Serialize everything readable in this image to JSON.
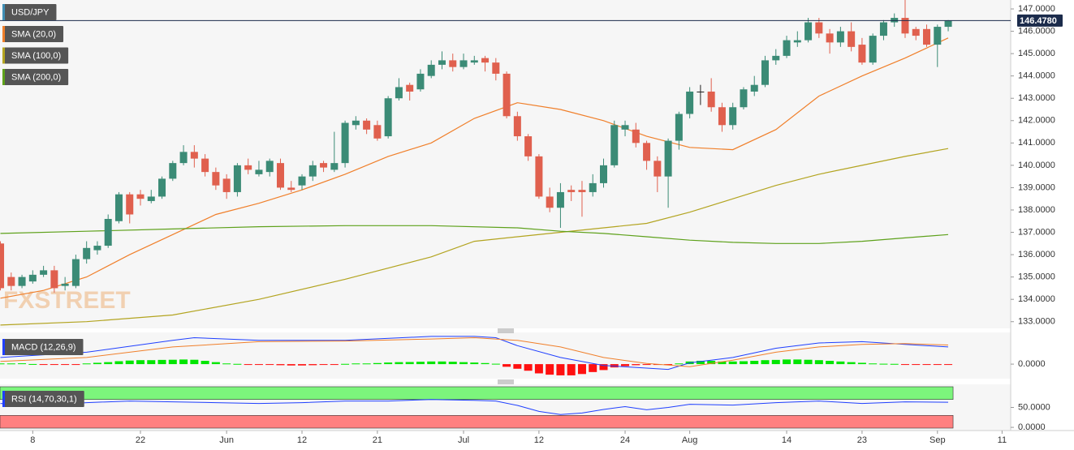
{
  "chart_data": [
    {
      "type": "candlestick",
      "series": [
        {
          "name": "USD/JPY",
          "color": "#3f8fb5",
          "up_color": "#3b8b76",
          "down_color": "#e0604e",
          "open": [
            136.5,
            135.0,
            134.6,
            134.8,
            135.1,
            135.3,
            134.6,
            134.6,
            135.8,
            136.2,
            136.4,
            137.5,
            138.7,
            138.7,
            138.4,
            138.6,
            139.4,
            140.1,
            140.6,
            140.3,
            139.7,
            139.4,
            138.8,
            140.0,
            139.6,
            139.7,
            140.1,
            139.0,
            139.1,
            139.5,
            140.1,
            139.8,
            140.1,
            141.8,
            142.0,
            141.8,
            141.3,
            143.0,
            143.6,
            143.4,
            144.0,
            144.5,
            144.7,
            144.4,
            144.6,
            144.8,
            144.6,
            144.1,
            142.2,
            141.3,
            140.4,
            138.6,
            138.1,
            138.9,
            138.9,
            138.8,
            139.2,
            140.0,
            141.6,
            141.6,
            141.0,
            140.2,
            139.5,
            141.1,
            142.3,
            143.3,
            143.3,
            142.6,
            141.8,
            142.6,
            143.3,
            143.6,
            144.7,
            144.9,
            145.5,
            145.6,
            146.4,
            145.9,
            145.5,
            146.0,
            145.4,
            144.6,
            145.8,
            146.4,
            146.6,
            146.1,
            146.1,
            145.4,
            146.2
          ],
          "high": [
            136.6,
            135.2,
            135.1,
            135.3,
            135.5,
            135.5,
            135.0,
            136.0,
            136.6,
            136.6,
            137.8,
            138.8,
            138.8,
            138.9,
            138.9,
            139.5,
            140.2,
            140.9,
            140.9,
            140.5,
            139.9,
            139.6,
            140.1,
            140.3,
            140.2,
            140.3,
            140.3,
            139.3,
            139.6,
            140.2,
            140.2,
            141.5,
            142.0,
            142.2,
            142.1,
            142.0,
            143.1,
            143.9,
            143.7,
            144.3,
            144.7,
            145.1,
            145.0,
            145.0,
            144.9,
            144.9,
            144.8,
            144.2,
            142.4,
            141.4,
            140.5,
            139.0,
            139.2,
            139.1,
            139.3,
            139.6,
            140.3,
            142.0,
            142.0,
            141.9,
            141.1,
            140.4,
            141.2,
            142.4,
            143.5,
            143.6,
            143.9,
            142.8,
            142.8,
            143.5,
            144.0,
            144.9,
            145.2,
            145.8,
            146.0,
            146.6,
            146.6,
            146.1,
            146.2,
            146.4,
            145.7,
            145.9,
            146.5,
            146.8,
            147.4,
            146.2,
            146.3,
            146.3,
            146.5
          ],
          "low": [
            134.4,
            134.4,
            134.5,
            134.7,
            135.0,
            134.3,
            134.4,
            134.5,
            135.6,
            136.0,
            136.3,
            137.4,
            137.4,
            138.2,
            138.3,
            138.5,
            139.3,
            140.0,
            139.9,
            139.5,
            138.9,
            138.5,
            138.6,
            139.6,
            139.5,
            139.5,
            138.9,
            138.8,
            138.9,
            139.3,
            139.7,
            139.7,
            139.9,
            141.6,
            141.4,
            141.1,
            141.2,
            142.9,
            142.9,
            143.3,
            143.9,
            144.3,
            144.2,
            144.3,
            144.5,
            144.2,
            143.8,
            142.1,
            141.1,
            140.2,
            138.5,
            137.9,
            137.2,
            138.4,
            137.7,
            138.6,
            139.0,
            139.9,
            141.3,
            140.8,
            139.8,
            138.8,
            138.1,
            140.7,
            142.1,
            142.7,
            142.4,
            141.5,
            141.6,
            142.5,
            143.1,
            143.5,
            144.5,
            144.8,
            145.3,
            145.5,
            145.7,
            145.0,
            145.3,
            145.1,
            144.5,
            144.5,
            145.6,
            146.2,
            145.7,
            145.6,
            145.3,
            144.4,
            146.0
          ],
          "close": [
            134.5,
            134.6,
            135.0,
            135.1,
            135.3,
            134.5,
            134.7,
            135.8,
            136.3,
            136.4,
            137.6,
            138.7,
            137.8,
            138.5,
            138.6,
            139.4,
            140.1,
            140.6,
            140.3,
            139.7,
            139.1,
            138.8,
            140.0,
            139.8,
            139.8,
            140.2,
            139.0,
            138.9,
            139.5,
            140.0,
            139.9,
            140.1,
            141.9,
            142.0,
            141.6,
            141.2,
            143.0,
            143.5,
            143.3,
            144.1,
            144.5,
            144.7,
            144.4,
            144.7,
            144.7,
            144.6,
            144.1,
            142.2,
            141.3,
            140.4,
            138.6,
            138.1,
            138.8,
            138.8,
            138.8,
            139.2,
            140.0,
            141.8,
            141.8,
            141.0,
            140.2,
            139.5,
            141.1,
            142.3,
            143.3,
            143.3,
            142.6,
            141.8,
            142.6,
            143.4,
            143.6,
            144.7,
            144.9,
            145.6,
            145.6,
            146.4,
            145.9,
            145.5,
            146.0,
            145.3,
            144.6,
            145.8,
            146.4,
            146.6,
            145.9,
            145.8,
            145.4,
            146.2,
            146.478
          ]
        }
      ],
      "lines": [
        {
          "name": "SMA (20,0)",
          "color": "#f07f2a",
          "x": [
            0,
            4,
            8,
            12,
            16,
            20,
            24,
            28,
            32,
            36,
            40,
            44,
            48,
            52,
            56,
            60,
            64,
            68,
            72,
            76,
            80,
            84,
            88
          ],
          "values": [
            134.05,
            134.4,
            135.0,
            136.0,
            136.9,
            137.8,
            138.3,
            138.9,
            139.6,
            140.4,
            141.0,
            142.1,
            142.8,
            142.5,
            142.0,
            141.3,
            140.8,
            140.7,
            141.6,
            143.1,
            144.0,
            144.8,
            145.7
          ]
        },
        {
          "name": "SMA (100,0)",
          "color": "#b3a420",
          "x": [
            0,
            8,
            16,
            24,
            32,
            40,
            44,
            48,
            52,
            56,
            60,
            64,
            68,
            72,
            76,
            80,
            84,
            88
          ],
          "values": [
            132.85,
            133.0,
            133.3,
            134.0,
            134.9,
            135.9,
            136.6,
            136.8,
            137.0,
            137.2,
            137.4,
            137.9,
            138.5,
            139.1,
            139.6,
            140.0,
            140.4,
            140.75
          ]
        },
        {
          "name": "SMA (200,0)",
          "color": "#5ea11b",
          "x": [
            0,
            8,
            16,
            24,
            32,
            40,
            48,
            52,
            56,
            60,
            64,
            68,
            72,
            76,
            80,
            84,
            88
          ],
          "values": [
            136.95,
            137.05,
            137.15,
            137.25,
            137.3,
            137.3,
            137.2,
            137.05,
            136.95,
            136.8,
            136.65,
            136.55,
            136.5,
            136.5,
            136.6,
            136.75,
            136.9
          ]
        }
      ],
      "watermark": "FXSTREET",
      "last_price": {
        "value": 146.478,
        "label": "146.4780"
      },
      "xlim": [
        -0.04,
        93.8
      ],
      "xticks": [
        {
          "value": 3,
          "label": "8"
        },
        {
          "value": 13,
          "label": "22"
        },
        {
          "value": 21,
          "label": "Jun"
        },
        {
          "value": 28,
          "label": "12"
        },
        {
          "value": 35,
          "label": "21"
        },
        {
          "value": 43,
          "label": "Jul"
        },
        {
          "value": 50,
          "label": "12"
        },
        {
          "value": 58,
          "label": "24"
        },
        {
          "value": 64,
          "label": "Aug"
        },
        {
          "value": 73,
          "label": "14"
        },
        {
          "value": 80,
          "label": "23"
        },
        {
          "value": 87,
          "label": "Sep"
        },
        {
          "value": 93,
          "label": "11"
        }
      ],
      "ylim": [
        132.7,
        147.4
      ],
      "yticks": [
        {
          "value": 133,
          "label": "133.0000"
        },
        {
          "value": 134,
          "label": "134.0000"
        },
        {
          "value": 135,
          "label": "135.0000"
        },
        {
          "value": 136,
          "label": "136.0000"
        },
        {
          "value": 137,
          "label": "137.0000"
        },
        {
          "value": 138,
          "label": "138.0000"
        },
        {
          "value": 139,
          "label": "139.0000"
        },
        {
          "value": 140,
          "label": "140.0000"
        },
        {
          "value": 141,
          "label": "141.0000"
        },
        {
          "value": 142,
          "label": "142.0000"
        },
        {
          "value": 143,
          "label": "143.0000"
        },
        {
          "value": 144,
          "label": "144.0000"
        },
        {
          "value": 145,
          "label": "145.0000"
        },
        {
          "value": 146,
          "label": "146.0000"
        },
        {
          "value": 147,
          "label": "147.0000"
        }
      ],
      "grid": false
    },
    {
      "type": "macd",
      "title": "MACD (12,26,9)",
      "histogram": {
        "up_color": "#00e600",
        "down_color": "#ff1010",
        "values": [
          0.05,
          0.05,
          0.06,
          0.01,
          -0.05,
          -0.06,
          -0.05,
          -0.02,
          0.05,
          0.1,
          0.15,
          0.22,
          0.27,
          0.3,
          0.3,
          0.32,
          0.33,
          0.35,
          0.33,
          0.25,
          0.15,
          0.05,
          0.02,
          -0.03,
          -0.05,
          -0.06,
          -0.08,
          -0.1,
          -0.1,
          -0.08,
          -0.05,
          -0.03,
          0.02,
          0.05,
          0.05,
          0.08,
          0.12,
          0.15,
          0.16,
          0.18,
          0.2,
          0.2,
          0.18,
          0.15,
          0.12,
          0.08,
          0.03,
          -0.2,
          -0.35,
          -0.5,
          -0.7,
          -0.8,
          -0.85,
          -0.85,
          -0.75,
          -0.6,
          -0.45,
          -0.25,
          -0.15,
          -0.08,
          -0.05,
          -0.05,
          -0.02,
          0.05,
          0.2,
          0.25,
          0.25,
          0.2,
          0.2,
          0.22,
          0.25,
          0.3,
          0.32,
          0.35,
          0.35,
          0.33,
          0.3,
          0.25,
          0.2,
          0.15,
          0.1,
          0.05,
          0.03,
          0.02,
          -0.02,
          -0.05,
          -0.06,
          -0.05,
          -0.04
        ]
      },
      "series": [
        {
          "color": "#1f3fff",
          "x": [
            0,
            8,
            16,
            18,
            24,
            32,
            40,
            44,
            46,
            48,
            52,
            56,
            60,
            62,
            64,
            68,
            72,
            76,
            80,
            84,
            88
          ],
          "values": [
            0.5,
            0.9,
            1.8,
            2.0,
            1.8,
            1.8,
            2.1,
            2.1,
            2.0,
            1.4,
            0.5,
            -0.1,
            -0.3,
            -0.4,
            0.1,
            0.5,
            1.2,
            1.6,
            1.7,
            1.5,
            1.3
          ]
        },
        {
          "color": "#f07f2a",
          "x": [
            0,
            8,
            16,
            24,
            32,
            40,
            44,
            48,
            52,
            56,
            60,
            64,
            68,
            72,
            76,
            80,
            84,
            88
          ],
          "values": [
            0.2,
            0.5,
            1.3,
            1.7,
            1.75,
            1.9,
            2.0,
            1.8,
            1.3,
            0.5,
            0.05,
            -0.2,
            0.3,
            0.9,
            1.3,
            1.5,
            1.55,
            1.45
          ]
        }
      ],
      "ylim": [
        -1.1,
        2.4
      ],
      "yticks": [
        {
          "value": 0,
          "label": "0.0000"
        }
      ]
    },
    {
      "type": "rsi",
      "title": "RSI (14,70,30,1)",
      "series": [
        {
          "color": "#1f3fff",
          "x": [
            0,
            4,
            8,
            12,
            16,
            20,
            24,
            28,
            32,
            36,
            40,
            44,
            46,
            48,
            50,
            52,
            54,
            56,
            58,
            60,
            62,
            64,
            68,
            72,
            76,
            80,
            84,
            88
          ],
          "values": [
            60,
            55,
            62,
            66,
            64,
            62,
            60,
            62,
            66,
            66,
            70,
            68,
            66,
            55,
            40,
            32,
            36,
            45,
            52,
            44,
            50,
            58,
            56,
            62,
            66,
            60,
            64,
            63
          ]
        }
      ],
      "upper_band": 70,
      "lower_band": 30,
      "upper_color": "#7cf57c",
      "lower_color": "#ff8080",
      "ylim": [
        -8,
        108
      ],
      "yticks": [
        {
          "value": 0,
          "label": "0.0000"
        },
        {
          "value": 50,
          "label": "50.0000"
        }
      ]
    }
  ]
}
